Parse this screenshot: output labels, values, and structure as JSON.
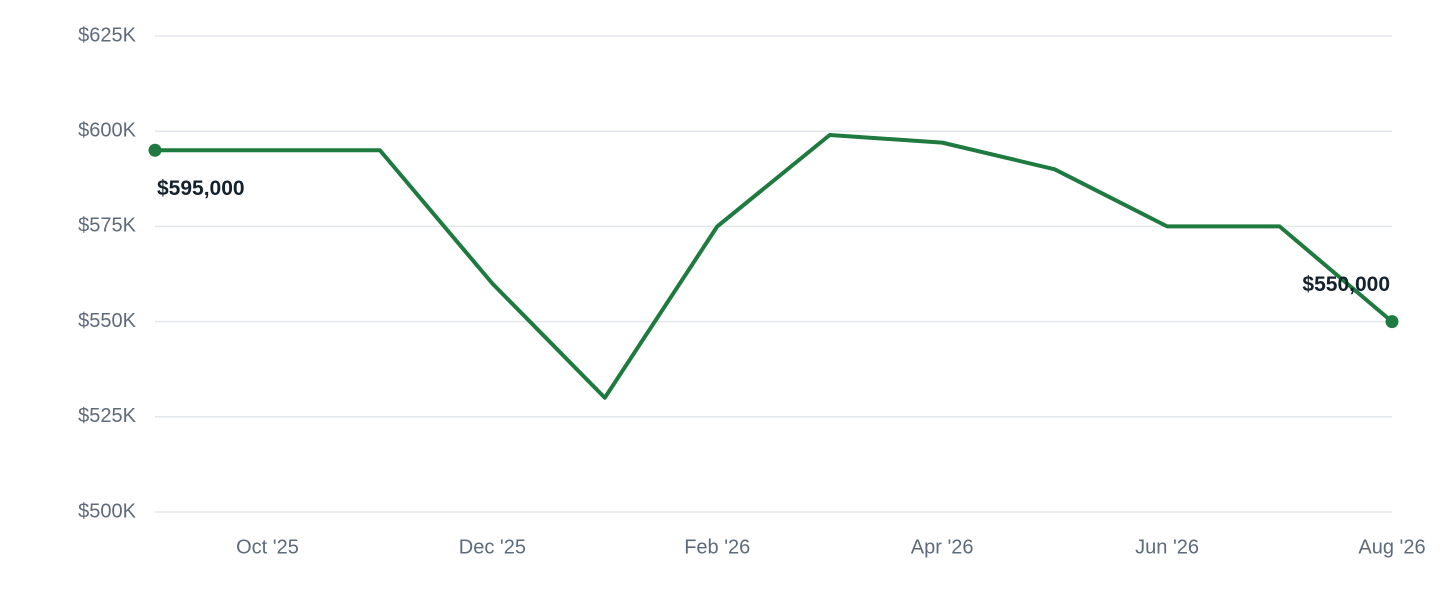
{
  "chart_data": {
    "type": "line",
    "categories": [
      null,
      "Oct '25",
      null,
      "Dec '25",
      null,
      "Feb '26",
      null,
      "Apr '26",
      null,
      "Jun '26",
      null,
      "Aug '26"
    ],
    "series": [
      {
        "color": "#1e7a3e",
        "values": [
          595000,
          595000,
          595000,
          560000,
          530000,
          575000,
          599000,
          597000,
          590000,
          575000,
          575000,
          550000
        ],
        "value_labels": [
          "$595,000",
          null,
          null,
          null,
          null,
          null,
          null,
          null,
          null,
          null,
          null,
          "$550,000"
        ]
      }
    ],
    "ylim": [
      500000,
      625000
    ],
    "yticks": [
      {
        "value": 500000,
        "label": "$500K"
      },
      {
        "value": 525000,
        "label": "$525K"
      },
      {
        "value": 550000,
        "label": "$550K"
      },
      {
        "value": 575000,
        "label": "$575K"
      },
      {
        "value": 600000,
        "label": "$600K"
      },
      {
        "value": 625000,
        "label": "$625K"
      }
    ],
    "grid": true
  }
}
